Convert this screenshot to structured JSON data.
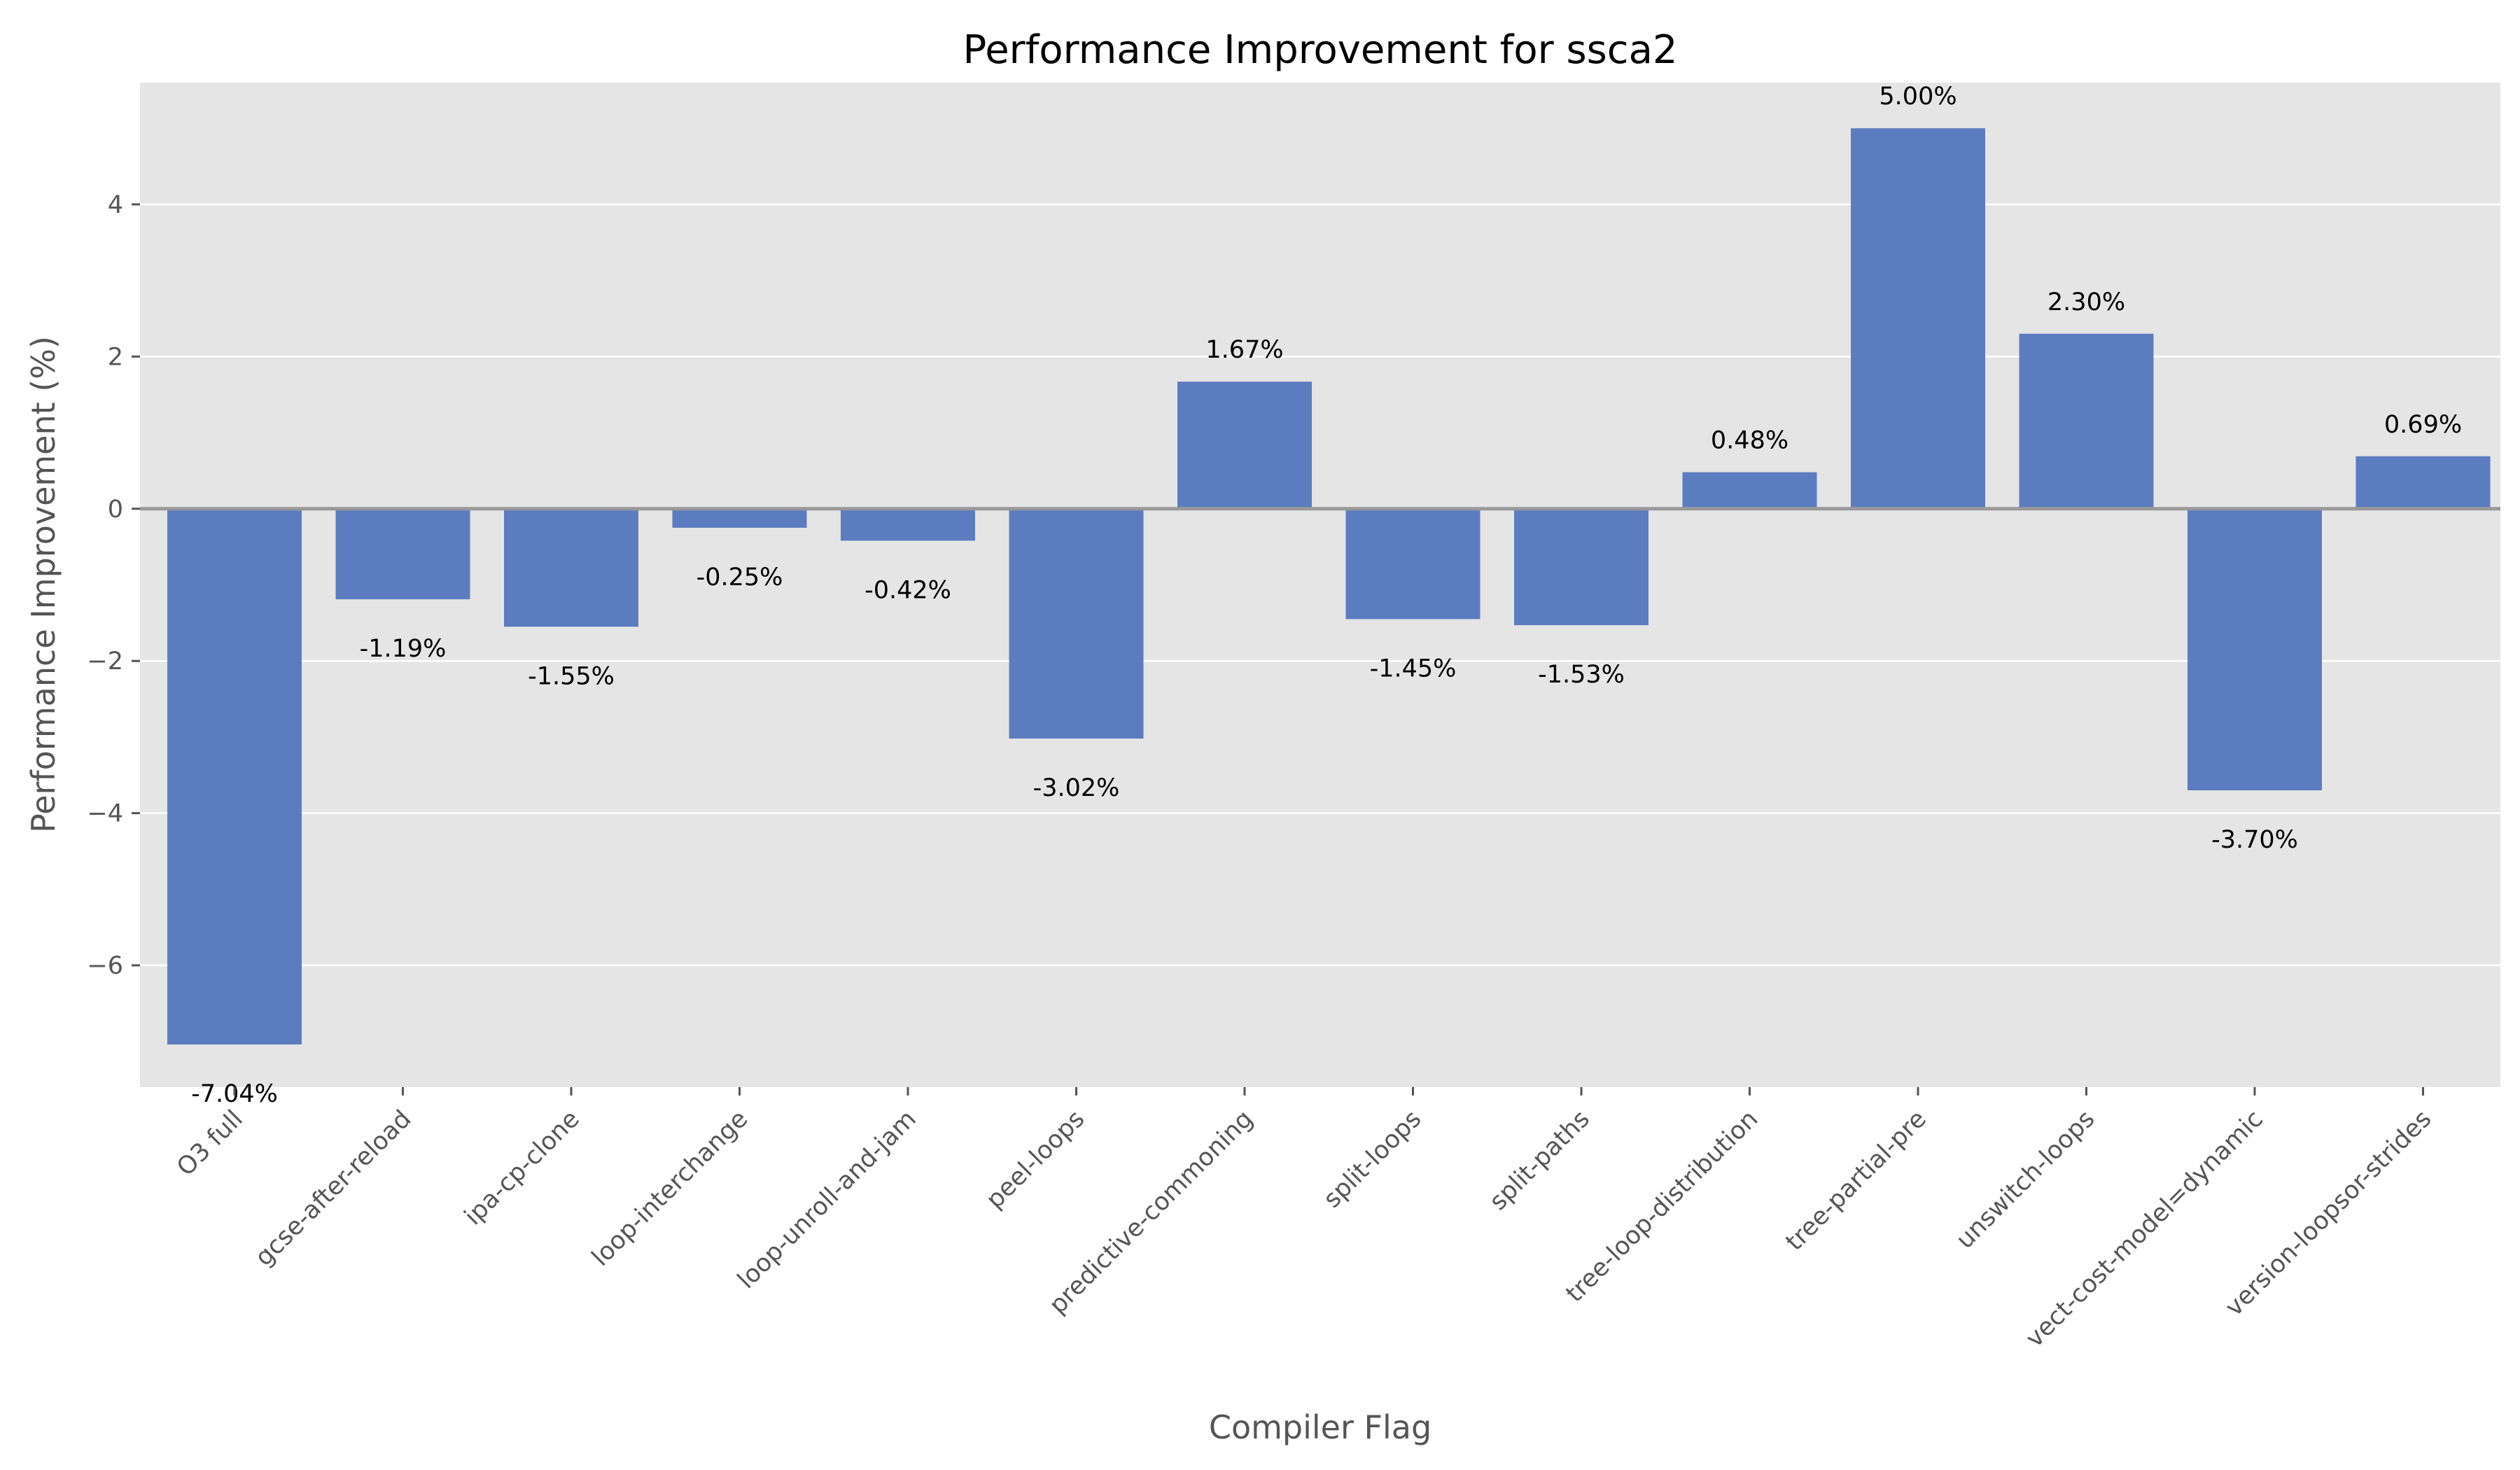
{
  "chart_data": {
    "type": "bar",
    "title": "Performance Improvement for ssca2",
    "xlabel": "Compiler Flag",
    "ylabel": "Performance Improvement (%)",
    "categories": [
      "O3 full",
      "gcse-after-reload",
      "ipa-cp-clone",
      "loop-interchange",
      "loop-unroll-and-jam",
      "peel-loops",
      "predictive-commoning",
      "split-loops",
      "split-paths",
      "tree-loop-distribution",
      "tree-partial-pre",
      "unswitch-loops",
      "vect-cost-model=dynamic",
      "version-loopsor-strides"
    ],
    "values": [
      -7.04,
      -1.19,
      -1.55,
      -0.25,
      -0.42,
      -3.02,
      1.67,
      -1.45,
      -1.53,
      0.48,
      5.0,
      2.3,
      -3.7,
      0.69
    ],
    "value_labels": [
      "-7.04%",
      "-1.19%",
      "-1.55%",
      "-0.25%",
      "-0.42%",
      "-3.02%",
      "1.67%",
      "-1.45%",
      "-1.53%",
      "0.48%",
      "5.00%",
      "2.30%",
      "-3.70%",
      "0.69%"
    ],
    "ylim": [
      -7.6,
      5.6
    ],
    "yticks": [
      -6,
      -4,
      -2,
      0,
      2,
      4
    ],
    "ytick_labels": [
      "−6",
      "−4",
      "−2",
      "0",
      "2",
      "4"
    ],
    "grid": true,
    "zero_line": true,
    "colors": {
      "bar": "#5b7dbf",
      "plot_background": "#e5e5e5",
      "grid": "#ffffff",
      "zero_line": "#999999"
    }
  }
}
